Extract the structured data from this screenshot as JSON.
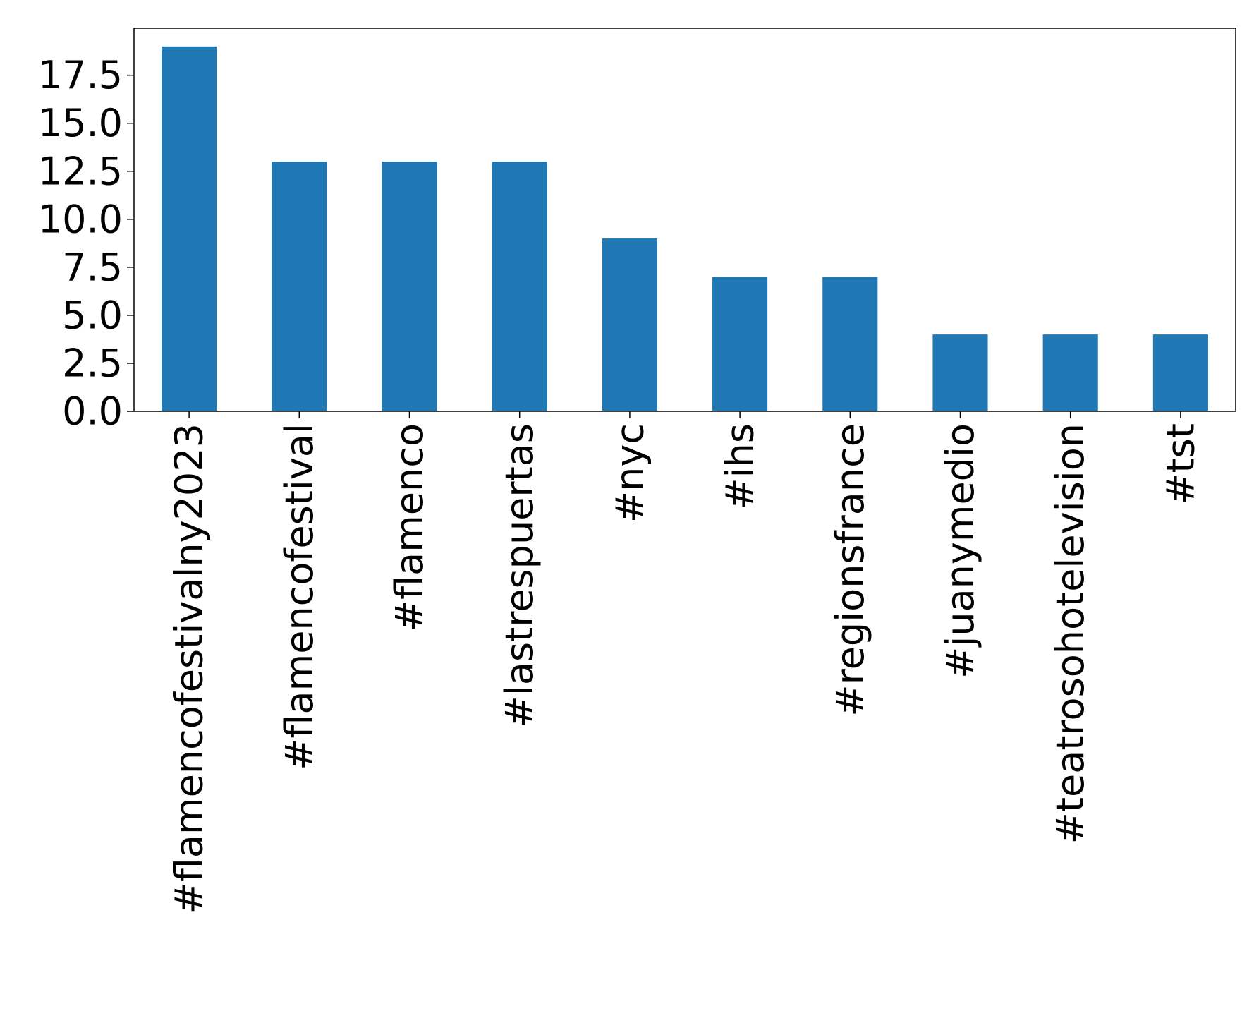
{
  "chart_data": {
    "type": "bar",
    "title": "",
    "xlabel": "",
    "ylabel": "",
    "categories": [
      "#flamencofestivalny2023",
      "#flamencofestival",
      "#flamenco",
      "#lastrespuertas",
      "#nyc",
      "#ihs",
      "#regionsfrance",
      "#juanymedio",
      "#teatrosohotelevision",
      "#tst"
    ],
    "values": [
      19,
      13,
      13,
      13,
      9,
      7,
      7,
      4,
      4,
      4
    ],
    "ylim": [
      0,
      19.95
    ],
    "yticks": [
      0.0,
      2.5,
      5.0,
      7.5,
      10.0,
      12.5,
      15.0,
      17.5
    ],
    "ytick_labels": [
      "0.0",
      "2.5",
      "5.0",
      "7.5",
      "10.0",
      "12.5",
      "15.0",
      "17.5"
    ],
    "bar_color": "#1f77b4",
    "grid": false,
    "legend": false
  }
}
